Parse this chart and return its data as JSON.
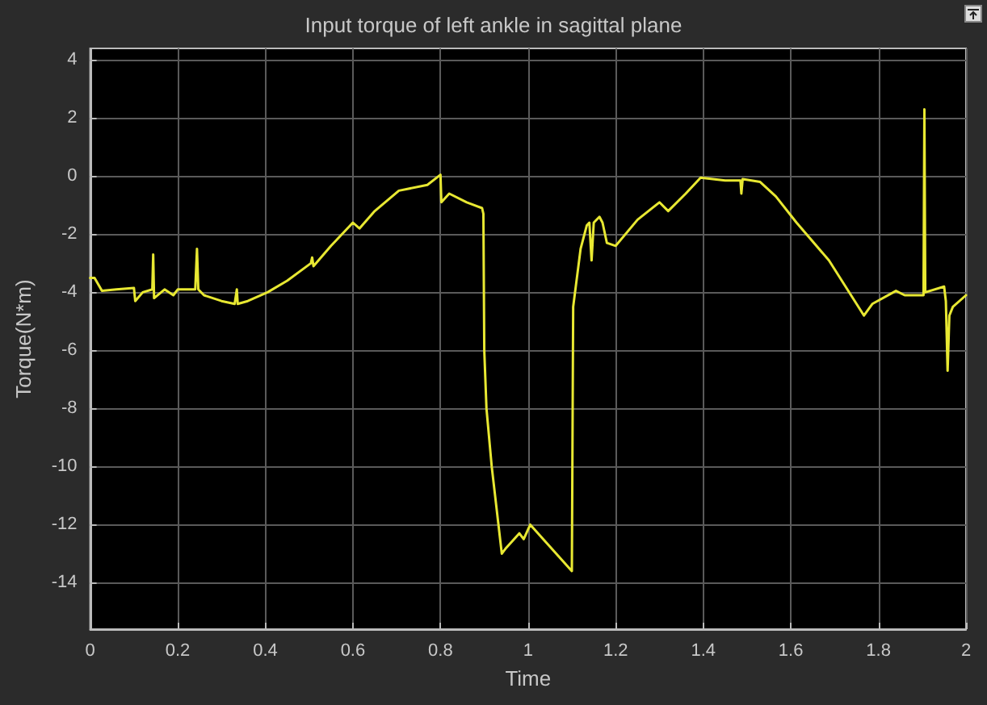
{
  "chart_data": {
    "type": "line",
    "title": "Input torque of left ankle in sagittal plane",
    "xlabel": "Time",
    "ylabel": "Torque(N*m)",
    "xlim": [
      0,
      2
    ],
    "xticks": [
      0,
      0.2,
      0.4,
      0.6,
      0.8,
      1,
      1.2,
      1.4,
      1.6,
      1.8,
      2
    ],
    "ylim": [
      -15.6,
      4.4
    ],
    "yticks": [
      -14,
      -12,
      -10,
      -8,
      -6,
      -4,
      -2,
      0,
      2,
      4
    ],
    "grid": true,
    "marker": "none",
    "line_style": "solid",
    "series": [
      {
        "color": "#e8e832",
        "x": [
          0,
          0.01,
          0.027,
          0.06,
          0.1,
          0.103,
          0.12,
          0.142,
          0.144,
          0.146,
          0.17,
          0.19,
          0.2,
          0.24,
          0.244,
          0.247,
          0.26,
          0.3,
          0.33,
          0.335,
          0.337,
          0.36,
          0.405,
          0.45,
          0.504,
          0.507,
          0.51,
          0.55,
          0.6,
          0.615,
          0.65,
          0.705,
          0.77,
          0.8,
          0.802,
          0.82,
          0.86,
          0.895,
          0.898,
          0.9,
          0.905,
          0.917,
          0.94,
          0.95,
          0.98,
          0.99,
          1.005,
          1.1,
          1.103,
          1.12,
          1.134,
          1.14,
          1.145,
          1.15,
          1.163,
          1.17,
          1.18,
          1.2,
          1.25,
          1.3,
          1.32,
          1.36,
          1.394,
          1.45,
          1.485,
          1.487,
          1.49,
          1.53,
          1.566,
          1.613,
          1.687,
          1.767,
          1.786,
          1.84,
          1.86,
          1.903,
          1.905,
          1.907,
          1.95,
          1.954,
          1.958,
          1.962,
          1.97,
          2
        ],
        "values": [
          -3.5,
          -3.5,
          -3.95,
          -3.9,
          -3.85,
          -4.3,
          -4.0,
          -3.9,
          -2.7,
          -4.2,
          -3.9,
          -4.1,
          -3.9,
          -3.9,
          -2.5,
          -3.9,
          -4.1,
          -4.3,
          -4.4,
          -3.9,
          -4.4,
          -4.3,
          -4.0,
          -3.6,
          -3.0,
          -2.8,
          -3.1,
          -2.4,
          -1.6,
          -1.8,
          -1.2,
          -0.5,
          -0.3,
          0.05,
          -0.9,
          -0.6,
          -0.9,
          -1.1,
          -1.3,
          -6,
          -8,
          -10,
          -13.0,
          -12.8,
          -12.3,
          -12.5,
          -12.0,
          -13.6,
          -4.5,
          -2.5,
          -1.7,
          -1.6,
          -2.9,
          -1.6,
          -1.4,
          -1.6,
          -2.3,
          -2.4,
          -1.5,
          -0.9,
          -1.2,
          -0.6,
          -0.05,
          -0.15,
          -0.15,
          -0.6,
          -0.1,
          -0.2,
          -0.7,
          -1.6,
          -2.9,
          -4.8,
          -4.4,
          -3.95,
          -4.1,
          -4.1,
          2.3,
          -4.0,
          -3.8,
          -4.3,
          -6.7,
          -4.8,
          -4.5,
          -4.1
        ]
      }
    ]
  }
}
